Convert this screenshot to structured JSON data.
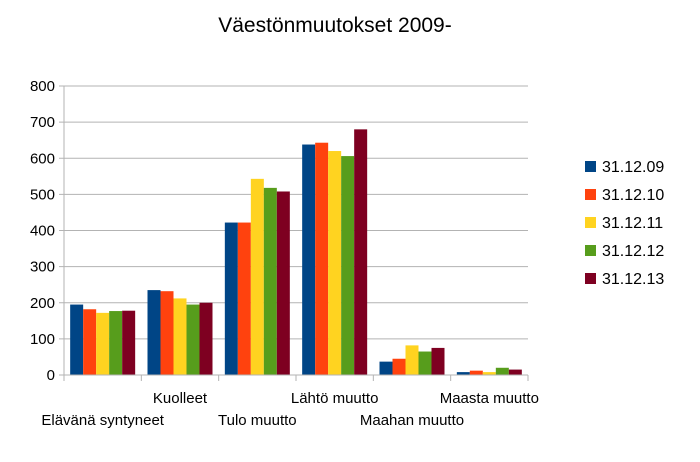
{
  "chart_data": {
    "type": "bar",
    "title": "Väestönmuutokset 2009-",
    "xlabel": "",
    "ylabel": "",
    "ylim": [
      0,
      800
    ],
    "yticks": [
      0,
      100,
      200,
      300,
      400,
      500,
      600,
      700,
      800
    ],
    "grid": true,
    "legend_position": "right",
    "categories": [
      "Elävänä syntyneet",
      "Kuolleet",
      "Tulo muutto",
      "Lähtö muutto",
      "Maahan muutto",
      "Maasta muutto"
    ],
    "series": [
      {
        "name": "31.12.09",
        "color": "#004586",
        "values": [
          195,
          235,
          422,
          638,
          37,
          8
        ]
      },
      {
        "name": "31.12.10",
        "color": "#ff420e",
        "values": [
          182,
          232,
          422,
          643,
          45,
          12
        ]
      },
      {
        "name": "31.12.11",
        "color": "#ffd320",
        "values": [
          172,
          212,
          543,
          620,
          82,
          8
        ]
      },
      {
        "name": "31.12.12",
        "color": "#579d1c",
        "values": [
          177,
          195,
          518,
          606,
          65,
          20
        ]
      },
      {
        "name": "31.12.13",
        "color": "#7e0021",
        "values": [
          178,
          200,
          508,
          680,
          75,
          15
        ]
      }
    ]
  }
}
